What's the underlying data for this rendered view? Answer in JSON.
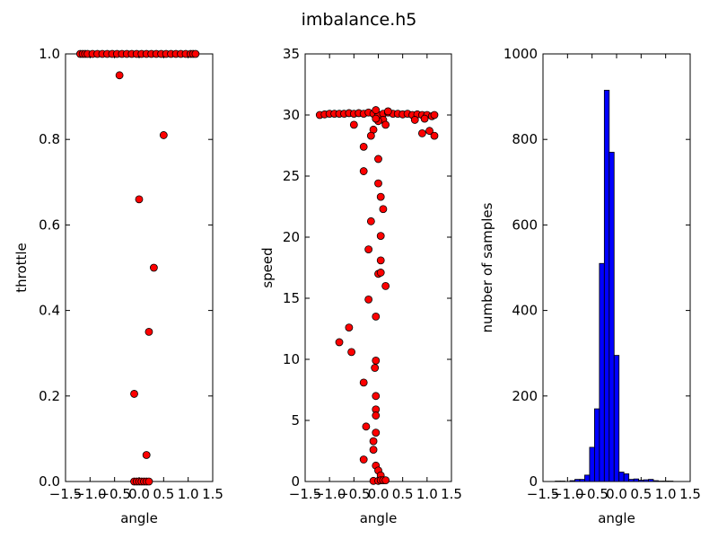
{
  "figure": {
    "title": "imbalance.h5"
  },
  "chart_data": [
    {
      "type": "scatter",
      "xlabel": "angle",
      "ylabel": "throttle",
      "xlim": [
        -1.5,
        1.5
      ],
      "ylim": [
        0,
        1.0
      ],
      "xticks": [
        "−1.5",
        "−1.0",
        "−0.5",
        "0.0",
        "0.5",
        "1.0",
        "1.5"
      ],
      "yticks": [
        "0.0",
        "0.2",
        "0.4",
        "0.6",
        "0.8",
        "1.0"
      ],
      "ytick_values": [
        0,
        0.2,
        0.4,
        0.6,
        0.8,
        1.0
      ],
      "marker_color": "#ff0000",
      "points": [
        [
          -1.2,
          1.0
        ],
        [
          -1.15,
          1.0
        ],
        [
          -1.1,
          1.0
        ],
        [
          -1.05,
          1.0
        ],
        [
          -0.95,
          1.0
        ],
        [
          -0.85,
          1.0
        ],
        [
          -0.75,
          1.0
        ],
        [
          -0.65,
          1.0
        ],
        [
          -0.55,
          1.0
        ],
        [
          -0.45,
          1.0
        ],
        [
          -0.35,
          1.0
        ],
        [
          -0.25,
          1.0
        ],
        [
          -0.15,
          1.0
        ],
        [
          -0.05,
          1.0
        ],
        [
          0.05,
          1.0
        ],
        [
          0.15,
          1.0
        ],
        [
          0.25,
          1.0
        ],
        [
          0.35,
          1.0
        ],
        [
          0.45,
          1.0
        ],
        [
          0.55,
          1.0
        ],
        [
          0.65,
          1.0
        ],
        [
          0.75,
          1.0
        ],
        [
          0.85,
          1.0
        ],
        [
          0.95,
          1.0
        ],
        [
          1.05,
          1.0
        ],
        [
          1.1,
          1.0
        ],
        [
          1.15,
          1.0
        ],
        [
          -0.4,
          0.95
        ],
        [
          0.5,
          0.81
        ],
        [
          0.0,
          0.66
        ],
        [
          0.3,
          0.5
        ],
        [
          0.2,
          0.35
        ],
        [
          -0.1,
          0.205
        ],
        [
          0.15,
          0.062
        ],
        [
          -0.1,
          0.0
        ],
        [
          -0.05,
          0.0
        ],
        [
          0.0,
          0.0
        ],
        [
          0.05,
          0.0
        ],
        [
          0.1,
          0.0
        ],
        [
          0.15,
          0.0
        ],
        [
          0.2,
          0.0
        ]
      ]
    },
    {
      "type": "scatter",
      "xlabel": "angle",
      "ylabel": "speed",
      "xlim": [
        -1.5,
        1.5
      ],
      "ylim": [
        0,
        35
      ],
      "xticks": [
        "−1.5",
        "−1.0",
        "−0.5",
        "0.0",
        "0.5",
        "1.0",
        "1.5"
      ],
      "yticks": [
        "0",
        "5",
        "10",
        "15",
        "20",
        "25",
        "30",
        "35"
      ],
      "ytick_values": [
        0,
        5,
        10,
        15,
        20,
        25,
        30,
        35
      ],
      "marker_color": "#ff0000",
      "points": [
        [
          -1.2,
          30.0
        ],
        [
          -1.1,
          30.05
        ],
        [
          -1.0,
          30.1
        ],
        [
          -0.9,
          30.1
        ],
        [
          -0.8,
          30.1
        ],
        [
          -0.7,
          30.1
        ],
        [
          -0.6,
          30.15
        ],
        [
          -0.5,
          30.1
        ],
        [
          -0.4,
          30.15
        ],
        [
          -0.3,
          30.1
        ],
        [
          -0.2,
          30.2
        ],
        [
          -0.1,
          30.1
        ],
        [
          0.0,
          30.0
        ],
        [
          0.1,
          30.1
        ],
        [
          0.2,
          30.2
        ],
        [
          0.3,
          30.1
        ],
        [
          0.4,
          30.1
        ],
        [
          0.5,
          30.05
        ],
        [
          0.6,
          30.1
        ],
        [
          0.7,
          30.0
        ],
        [
          0.8,
          30.05
        ],
        [
          0.9,
          30.0
        ],
        [
          1.0,
          30.0
        ],
        [
          1.1,
          29.9
        ],
        [
          1.15,
          30.0
        ],
        [
          -0.05,
          30.4
        ],
        [
          0.2,
          30.3
        ],
        [
          0.1,
          29.6
        ],
        [
          0.0,
          29.5
        ],
        [
          -0.05,
          29.7
        ],
        [
          0.75,
          29.6
        ],
        [
          0.95,
          29.7
        ],
        [
          1.05,
          28.7
        ],
        [
          0.9,
          28.5
        ],
        [
          1.15,
          28.3
        ],
        [
          -0.5,
          29.2
        ],
        [
          -0.1,
          28.8
        ],
        [
          0.15,
          29.2
        ],
        [
          -0.15,
          28.3
        ],
        [
          -0.3,
          27.4
        ],
        [
          0.0,
          26.4
        ],
        [
          -0.3,
          25.4
        ],
        [
          0.0,
          24.4
        ],
        [
          0.05,
          23.3
        ],
        [
          0.1,
          22.3
        ],
        [
          -0.15,
          21.3
        ],
        [
          0.05,
          20.1
        ],
        [
          -0.2,
          19.0
        ],
        [
          0.05,
          18.1
        ],
        [
          0.0,
          17.0
        ],
        [
          0.05,
          17.1
        ],
        [
          0.15,
          16.0
        ],
        [
          -0.2,
          14.9
        ],
        [
          -0.05,
          13.5
        ],
        [
          -0.6,
          12.6
        ],
        [
          -0.8,
          11.4
        ],
        [
          -0.55,
          10.6
        ],
        [
          -0.05,
          9.9
        ],
        [
          -0.07,
          9.3
        ],
        [
          -0.3,
          8.1
        ],
        [
          -0.05,
          7.0
        ],
        [
          -0.05,
          5.9
        ],
        [
          -0.05,
          5.4
        ],
        [
          -0.25,
          4.5
        ],
        [
          -0.05,
          4.0
        ],
        [
          -0.1,
          3.3
        ],
        [
          -0.1,
          2.6
        ],
        [
          -0.3,
          1.8
        ],
        [
          -0.05,
          1.3
        ],
        [
          0.0,
          0.9
        ],
        [
          0.05,
          0.5
        ],
        [
          -0.1,
          0.05
        ],
        [
          0.0,
          0.05
        ],
        [
          0.05,
          0.1
        ],
        [
          0.1,
          0.1
        ],
        [
          0.15,
          0.1
        ]
      ]
    },
    {
      "type": "bar",
      "xlabel": "angle",
      "ylabel": "number of samples",
      "xlim": [
        -1.5,
        1.5
      ],
      "ylim": [
        0,
        1000
      ],
      "xticks": [
        "−1.5",
        "−1.0",
        "−0.5",
        "0.0",
        "0.5",
        "1.0",
        "1.5"
      ],
      "yticks": [
        "0",
        "200",
        "400",
        "600",
        "800",
        "1000"
      ],
      "ytick_values": [
        0,
        200,
        400,
        600,
        800,
        1000
      ],
      "bar_color": "#0000ff",
      "bin_start": -1.25,
      "bin_width": 0.1,
      "counts": [
        1,
        1,
        0,
        2,
        5,
        5,
        15,
        80,
        170,
        510,
        915,
        770,
        295,
        22,
        18,
        5,
        6,
        3,
        4,
        5,
        2,
        1,
        1,
        1
      ]
    }
  ]
}
